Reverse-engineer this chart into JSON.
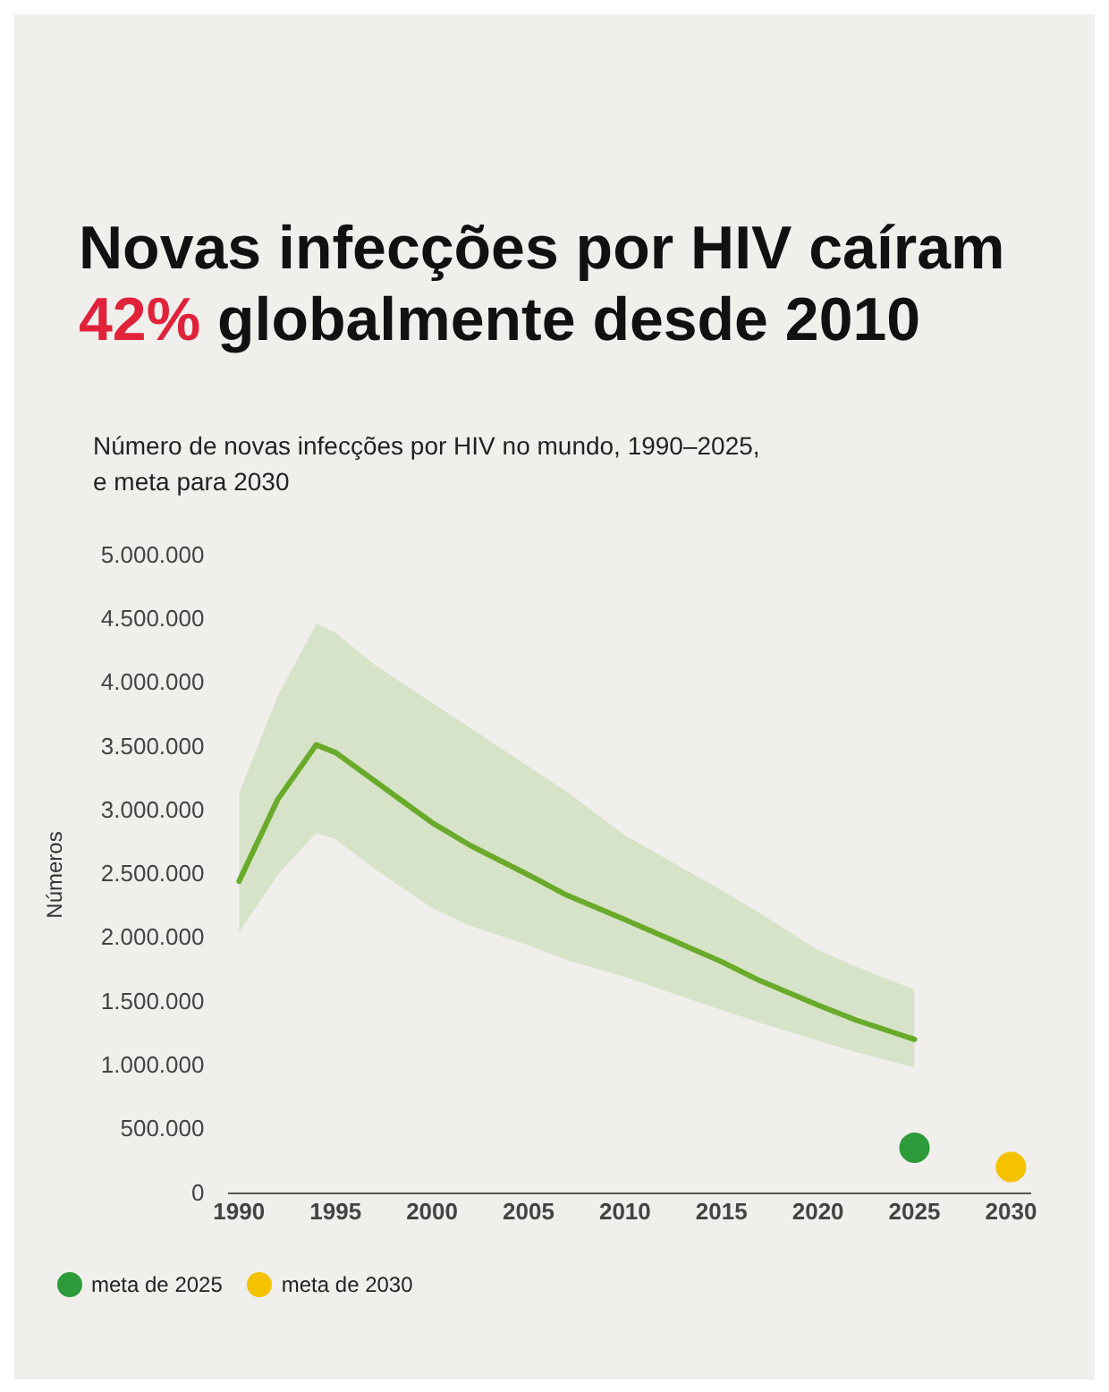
{
  "chart_data": {
    "type": "line",
    "title": "Novas infecções por HIV caíram\n42% globalmente desde 2010",
    "subtitle": "Número de novas infecções por HIV no mundo, 1990–2025,\ne meta para 2030",
    "ylabel": "Números",
    "xlim": [
      1989.5,
      2031
    ],
    "xticks": [
      1990,
      1995,
      2000,
      2005,
      2010,
      2015,
      2020,
      2025,
      2030
    ],
    "ylim": [
      0,
      5000000
    ],
    "yticks": [
      {
        "value": 0,
        "label": "0"
      },
      {
        "value": 500000,
        "label": "500.000"
      },
      {
        "value": 1000000,
        "label": "1.000.000"
      },
      {
        "value": 1500000,
        "label": "1.500.000"
      },
      {
        "value": 2000000,
        "label": "2.000.000"
      },
      {
        "value": 2500000,
        "label": "2.500.000"
      },
      {
        "value": 3000000,
        "label": "3.000.000"
      },
      {
        "value": 3500000,
        "label": "3.500.000"
      },
      {
        "value": 4000000,
        "label": "4.000.000"
      },
      {
        "value": 4500000,
        "label": "4.500.000"
      },
      {
        "value": 5000000,
        "label": "5.000.000"
      }
    ],
    "grid": false,
    "legend": "bottom left",
    "series": [
      {
        "color": "#6aaa2a",
        "marker": "none",
        "line_style": "solid",
        "x": [
          1990,
          1992,
          1994,
          1995,
          1997,
          2000,
          2002,
          2005,
          2007,
          2010,
          2015,
          2017,
          2020,
          2022,
          2025
        ],
        "values": [
          2450000,
          3090000,
          3520000,
          3460000,
          3240000,
          2910000,
          2730000,
          2500000,
          2340000,
          2150000,
          1820000,
          1670000,
          1480000,
          1360000,
          1210000
        ],
        "upper": [
          3140000,
          3900000,
          4470000,
          4400000,
          4150000,
          3850000,
          3650000,
          3350000,
          3150000,
          2810000,
          2380000,
          2200000,
          1910000,
          1780000,
          1600000
        ],
        "lower": [
          2050000,
          2500000,
          2830000,
          2780000,
          2550000,
          2240000,
          2100000,
          1950000,
          1830000,
          1700000,
          1440000,
          1340000,
          1200000,
          1110000,
          990000
        ]
      },
      {
        "type": "scatter",
        "name": "meta de 2025",
        "color": "#2e9b3a",
        "marker": "circle",
        "x": [
          2025
        ],
        "values": [
          360000
        ]
      },
      {
        "type": "scatter",
        "name": "meta de 2030",
        "color": "#f5c200",
        "marker": "circle",
        "x": [
          2030
        ],
        "values": [
          210000
        ]
      }
    ]
  }
}
